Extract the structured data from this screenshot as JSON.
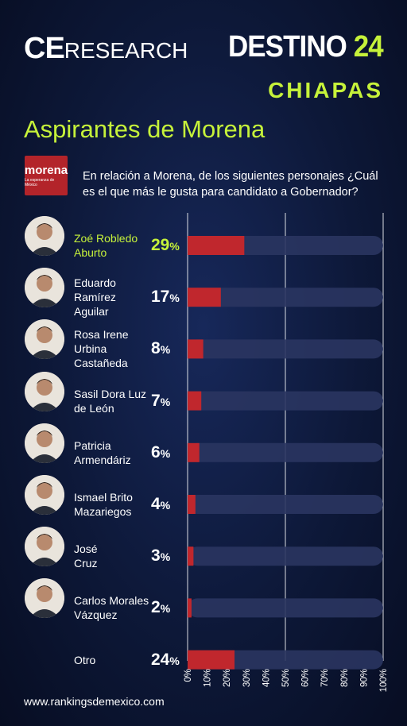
{
  "brand": {
    "left_ce": "CE",
    "left_research": "RESEARCH",
    "right_destino": "DESTINO",
    "right_num": "24"
  },
  "state": "CHIAPAS",
  "title": "Aspirantes de Morena",
  "party_logo": {
    "name": "morena",
    "tagline": "La esperanza de México"
  },
  "question": "En relación a Morena, de los siguientes personajes ¿Cuál es el que más le gusta para candidato a Gobernador?",
  "footer": "www.rankingsdemexico.com",
  "colors": {
    "accent": "#c6f23a",
    "bar": "#c0272d",
    "track": "#2a3560"
  },
  "chart_data": {
    "type": "bar",
    "orientation": "horizontal",
    "categories": [
      "Zoé Robledo Aburto",
      "Eduardo Ramírez Aguilar",
      "Rosa Irene Urbina Castañeda",
      "Sasil Dora Luz de León",
      "Patricia Armendáriz",
      "Ismael Brito Mazariegos",
      "José Cruz",
      "Carlos Morales Vázquez",
      "Otro"
    ],
    "values": [
      29,
      17,
      8,
      7,
      6,
      4,
      3,
      2,
      24
    ],
    "value_labels": [
      "29",
      "17",
      "8",
      "7",
      "6",
      "4",
      "3",
      "2",
      "24"
    ],
    "value_suffix": "%",
    "xlim": [
      0,
      100
    ],
    "x_ticks": [
      "0%",
      "10%",
      "20%",
      "30%",
      "40%",
      "50%",
      "60%",
      "70%",
      "80%",
      "90%",
      "100%"
    ],
    "grid": true
  },
  "rows": [
    {
      "name_lines": [
        "Zoé Robledo",
        "Aburto"
      ],
      "highlight": true
    },
    {
      "name_lines": [
        "Eduardo",
        "Ramírez",
        "Aguilar"
      ],
      "highlight": false
    },
    {
      "name_lines": [
        "Rosa Irene",
        "Urbina",
        "Castañeda"
      ],
      "highlight": false
    },
    {
      "name_lines": [
        "Sasil Dora Luz",
        "de León"
      ],
      "highlight": false
    },
    {
      "name_lines": [
        "Patricia",
        "Armendáriz"
      ],
      "highlight": false
    },
    {
      "name_lines": [
        "Ismael Brito",
        "Mazariegos"
      ],
      "highlight": false
    },
    {
      "name_lines": [
        "José",
        "Cruz"
      ],
      "highlight": false
    },
    {
      "name_lines": [
        "Carlos Morales",
        "Vázquez"
      ],
      "highlight": false
    },
    {
      "name_lines": [
        "Otro"
      ],
      "highlight": false,
      "no_avatar": true
    }
  ]
}
